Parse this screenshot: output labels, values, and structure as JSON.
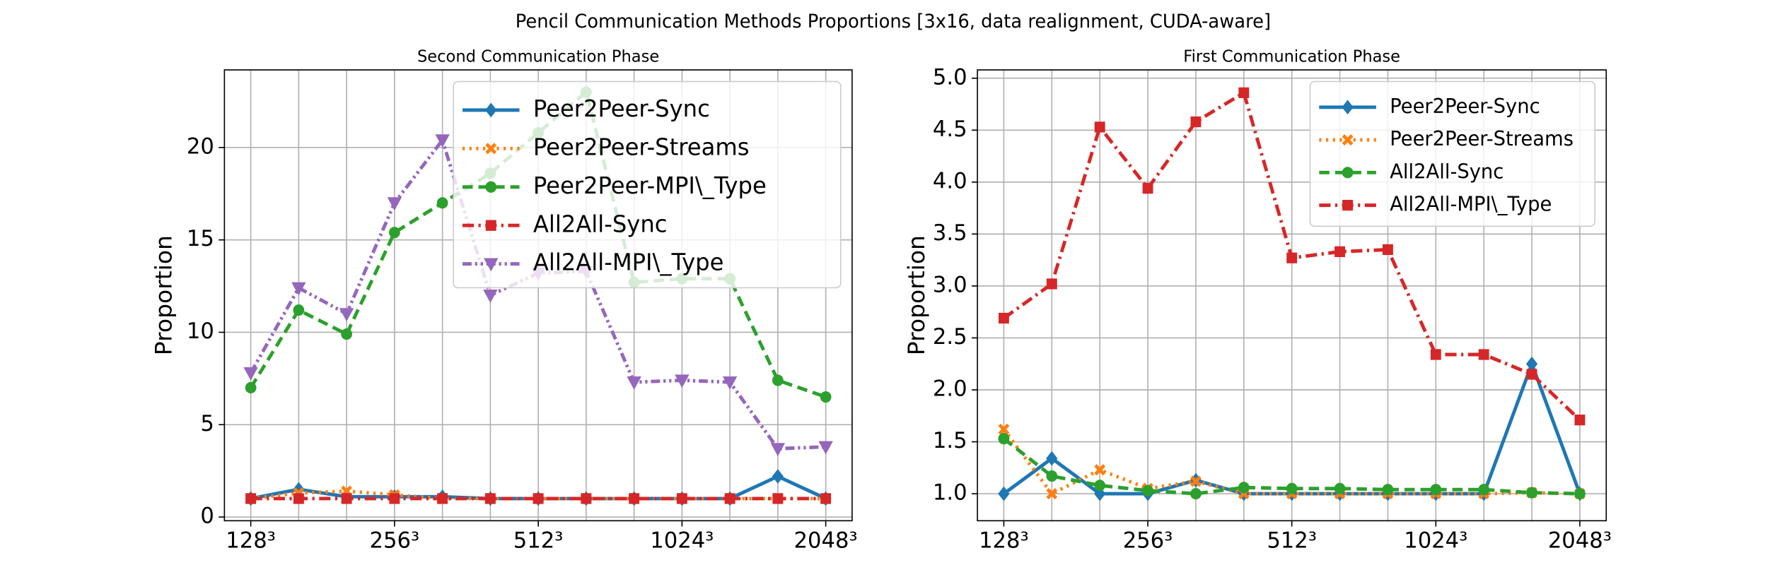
{
  "title": "Pencil Communication Methods Proportions [3x16, data realignment, CUDA-aware]",
  "chart_data": [
    {
      "type": "line",
      "title": "Second Communication Phase",
      "ylabel": "Proportion",
      "grid": true,
      "legend": "upper right",
      "categories": [
        "128³",
        null,
        null,
        "256³",
        null,
        null,
        "512³",
        null,
        null,
        "1024³",
        null,
        null,
        "2048³"
      ],
      "ylim": [
        -0.2,
        24.2
      ],
      "yticks": [
        0,
        5,
        10,
        15,
        20
      ],
      "series": [
        {
          "name": "Peer2Peer-Sync",
          "color": "#1f77b4",
          "marker": "diamond",
          "linestyle": "solid",
          "values": [
            1.0,
            1.5,
            1.1,
            1.1,
            1.1,
            1.0,
            1.0,
            1.0,
            1.0,
            1.0,
            1.0,
            2.2,
            1.0
          ]
        },
        {
          "name": "Peer2Peer-Streams",
          "color": "#ff7f0e",
          "marker": "x",
          "linestyle": "dotted",
          "values": [
            1.0,
            1.3,
            1.4,
            1.2,
            1.0,
            1.0,
            1.0,
            1.0,
            1.0,
            1.0,
            1.0,
            1.0,
            1.0
          ]
        },
        {
          "name": "Peer2Peer-MPI\\_Type",
          "color": "#2ca02c",
          "marker": "circle",
          "linestyle": "dashed",
          "values": [
            7.0,
            11.2,
            9.9,
            15.4,
            17.0,
            18.6,
            20.8,
            23.0,
            12.7,
            12.9,
            12.9,
            7.4,
            6.5
          ]
        },
        {
          "name": "All2All-Sync",
          "color": "#d62728",
          "marker": "square",
          "linestyle": "dashdot",
          "values": [
            1.0,
            1.0,
            1.0,
            1.0,
            1.0,
            1.0,
            1.0,
            1.0,
            1.0,
            1.0,
            1.0,
            1.0,
            1.0
          ]
        },
        {
          "name": "All2All-MPI\\_Type",
          "color": "#9467bd",
          "marker": "triangle-down",
          "linestyle": "dashdotdot",
          "values": [
            7.8,
            12.4,
            11.0,
            17.0,
            20.4,
            12.0,
            13.2,
            13.3,
            7.3,
            7.4,
            7.3,
            3.7,
            3.8
          ]
        }
      ]
    },
    {
      "type": "line",
      "title": "First Communication Phase",
      "ylabel": "Proportion",
      "grid": true,
      "legend": "upper right",
      "categories": [
        "128³",
        null,
        null,
        "256³",
        null,
        null,
        "512³",
        null,
        null,
        "1024³",
        null,
        null,
        "2048³"
      ],
      "ylim": [
        0.74,
        5.08
      ],
      "yticks": [
        {
          "value": 1,
          "label": "1.0"
        },
        1.5,
        {
          "value": 2,
          "label": "2.0"
        },
        2.5,
        {
          "value": 3,
          "label": "3.0"
        },
        3.5,
        {
          "value": 4,
          "label": "4.0"
        },
        4.5,
        {
          "value": 5,
          "label": "5.0"
        }
      ],
      "series": [
        {
          "name": "Peer2Peer-Sync",
          "color": "#1f77b4",
          "marker": "diamond",
          "linestyle": "solid",
          "values": [
            1.0,
            1.34,
            1.0,
            1.0,
            1.13,
            1.0,
            1.0,
            1.0,
            1.0,
            1.0,
            1.0,
            2.25,
            1.0
          ]
        },
        {
          "name": "Peer2Peer-Streams",
          "color": "#ff7f0e",
          "marker": "x",
          "linestyle": "dotted",
          "values": [
            1.62,
            1.0,
            1.23,
            1.05,
            1.12,
            1.0,
            1.0,
            1.0,
            1.0,
            1.0,
            1.0,
            1.01,
            1.0
          ]
        },
        {
          "name": "All2All-Sync",
          "color": "#2ca02c",
          "marker": "circle",
          "linestyle": "dashed",
          "values": [
            1.53,
            1.17,
            1.08,
            1.03,
            1.0,
            1.06,
            1.05,
            1.05,
            1.04,
            1.04,
            1.04,
            1.01,
            1.0
          ]
        },
        {
          "name": "All2All-MPI\\_Type",
          "color": "#d62728",
          "marker": "square",
          "linestyle": "dashdot",
          "values": [
            2.69,
            3.02,
            4.53,
            3.94,
            4.58,
            4.86,
            3.27,
            3.33,
            3.35,
            2.34,
            2.34,
            2.15,
            1.71
          ]
        }
      ]
    }
  ]
}
